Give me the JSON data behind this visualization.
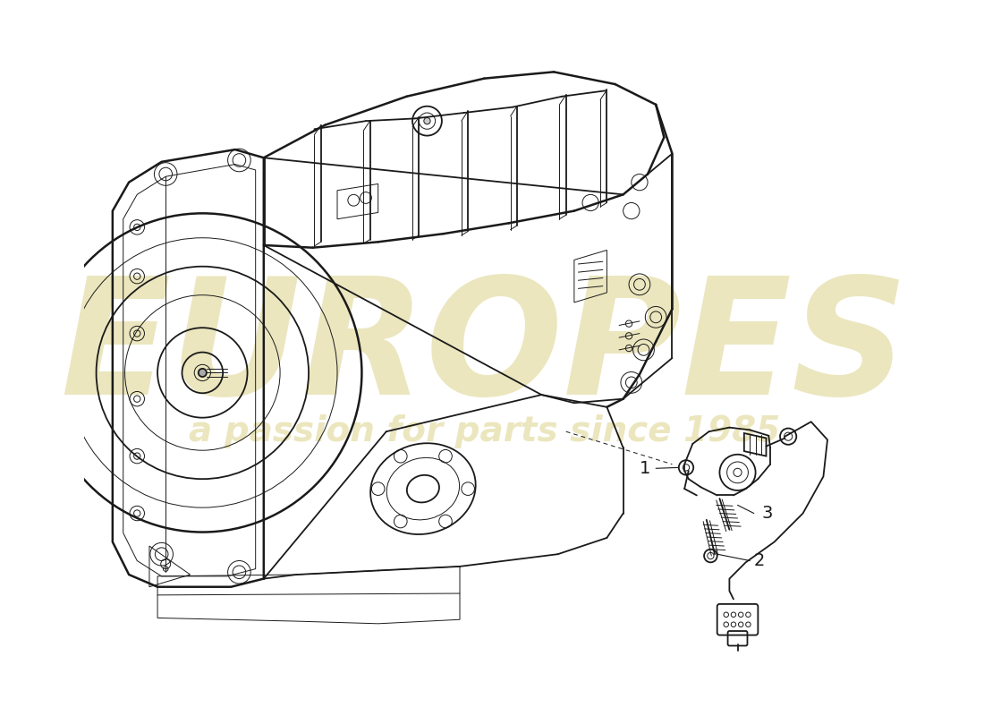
{
  "background_color": "#ffffff",
  "line_color": "#1a1a1a",
  "watermark_text1": "EUROPES",
  "watermark_text2": "a passion for parts since 1985",
  "watermark_color": "#d4c870",
  "watermark_alpha": 0.45,
  "fig_width": 11.0,
  "fig_height": 8.0,
  "dpi": 100,
  "lw_main": 1.3,
  "lw_thin": 0.7,
  "lw_thick": 1.8
}
